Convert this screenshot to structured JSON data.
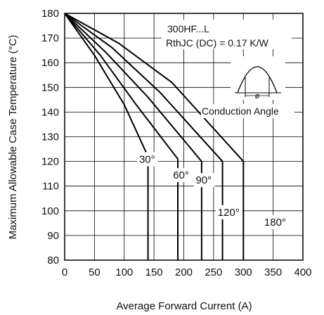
{
  "chart_data": {
    "type": "line",
    "xlabel": "Average Forward Current (A)",
    "ylabel": "Maximum Allowable Case Temperature (°C)",
    "xlim": [
      0,
      400
    ],
    "ylim": [
      80,
      180
    ],
    "x_ticks": [
      0,
      50,
      100,
      150,
      200,
      250,
      300,
      350,
      400
    ],
    "y_ticks": [
      80,
      90,
      100,
      110,
      120,
      130,
      140,
      150,
      160,
      170,
      180
    ],
    "grid": true,
    "annotations": {
      "device": "300HF...L",
      "rth": "RthJC (DC) = 0.17 K/W",
      "conduction_angle": "Conduction Angle",
      "phi": "ø"
    },
    "series": [
      {
        "name": "30°",
        "points": [
          [
            0,
            180
          ],
          [
            50,
            163
          ],
          [
            100,
            143
          ],
          [
            140,
            122
          ],
          [
            140,
            80
          ]
        ]
      },
      {
        "name": "60°",
        "points": [
          [
            0,
            180
          ],
          [
            60,
            163
          ],
          [
            120,
            143
          ],
          [
            190,
            121
          ],
          [
            190,
            80
          ]
        ]
      },
      {
        "name": "90°",
        "points": [
          [
            0,
            180
          ],
          [
            70,
            164
          ],
          [
            140,
            146
          ],
          [
            230,
            120
          ],
          [
            230,
            80
          ]
        ]
      },
      {
        "name": "120°",
        "points": [
          [
            0,
            180
          ],
          [
            80,
            166
          ],
          [
            160,
            148
          ],
          [
            265,
            120
          ],
          [
            265,
            80
          ]
        ]
      },
      {
        "name": "180°",
        "points": [
          [
            0,
            180
          ],
          [
            90,
            168
          ],
          [
            180,
            152
          ],
          [
            300,
            120
          ],
          [
            300,
            80
          ]
        ]
      }
    ],
    "series_labels": [
      {
        "text": "30°",
        "x": 125,
        "y": 119.5
      },
      {
        "text": "60°",
        "x": 182,
        "y": 113
      },
      {
        "text": "90°",
        "x": 220,
        "y": 111
      },
      {
        "text": "120°",
        "x": 257,
        "y": 98
      },
      {
        "text": "180°",
        "x": 335,
        "y": 94
      }
    ]
  }
}
